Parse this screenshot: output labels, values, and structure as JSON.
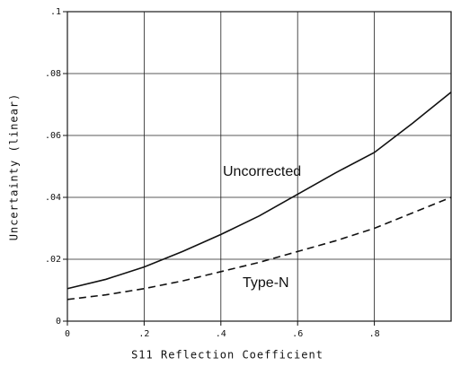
{
  "chart_data": {
    "type": "line",
    "xlabel": "S11 Reflection Coefficient",
    "ylabel": "Uncertainty (linear)",
    "x": [
      0,
      0.1,
      0.2,
      0.3,
      0.4,
      0.5,
      0.6,
      0.7,
      0.8,
      0.9,
      1
    ],
    "series": [
      {
        "name": "Uncorrected",
        "color": "#111111",
        "line_style": "solid",
        "values": [
          0.0105,
          0.0135,
          0.0175,
          0.0225,
          0.028,
          0.034,
          0.041,
          0.048,
          0.0545,
          0.064,
          0.074
        ]
      },
      {
        "name": "Type-N",
        "color": "#111111",
        "line_style": "dashed",
        "values": [
          0.007,
          0.0085,
          0.0105,
          0.013,
          0.016,
          0.019,
          0.0225,
          0.026,
          0.03,
          0.035,
          0.04
        ]
      }
    ],
    "xlim": [
      0,
      1
    ],
    "xticks": [
      0,
      {
        "value": 0.2,
        "label": ".2"
      },
      {
        "value": 0.4,
        "label": ".4"
      },
      {
        "value": 0.6,
        "label": ".6"
      },
      {
        "value": 0.8,
        "label": ".8"
      }
    ],
    "ylim": [
      0,
      0.1
    ],
    "yticks": [
      0,
      {
        "value": 0.02,
        "label": ".02"
      },
      {
        "value": 0.04,
        "label": ".04"
      },
      {
        "value": 0.06,
        "label": ".06"
      },
      {
        "value": 0.08,
        "label": ".08"
      },
      {
        "value": 0.1,
        "label": ".1"
      }
    ],
    "grid": true
  }
}
